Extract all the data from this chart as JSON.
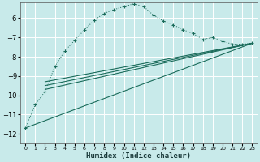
{
  "xlabel": "Humidex (Indice chaleur)",
  "bg_color": "#c8eaea",
  "grid_color": "#ffffff",
  "line_color": "#1a6b5a",
  "xlim": [
    -0.5,
    23.5
  ],
  "ylim": [
    -12.5,
    -5.2
  ],
  "yticks": [
    -12,
    -11,
    -10,
    -9,
    -8,
    -7,
    -6
  ],
  "xticks": [
    0,
    1,
    2,
    3,
    4,
    5,
    6,
    7,
    8,
    9,
    10,
    11,
    12,
    13,
    14,
    15,
    16,
    17,
    18,
    19,
    20,
    21,
    22,
    23
  ],
  "curve1_x": [
    0,
    1,
    2,
    3,
    4,
    5,
    6,
    7,
    8,
    9,
    10,
    11,
    12,
    13,
    14,
    15,
    16,
    17,
    18,
    19,
    20,
    21,
    22,
    23
  ],
  "curve1_y": [
    -11.7,
    -10.5,
    -9.8,
    -8.5,
    -7.7,
    -7.15,
    -6.6,
    -6.1,
    -5.75,
    -5.55,
    -5.4,
    -5.25,
    -5.4,
    -5.85,
    -6.15,
    -6.35,
    -6.6,
    -6.8,
    -7.1,
    -7.0,
    -7.2,
    -7.35,
    -7.35,
    -7.3
  ],
  "line1_x": [
    0,
    23
  ],
  "line1_y": [
    -11.7,
    -7.3
  ],
  "line2_x": [
    2,
    23
  ],
  "line2_y": [
    -9.7,
    -7.3
  ],
  "line3_x": [
    2,
    23
  ],
  "line3_y": [
    -9.5,
    -7.3
  ],
  "line4_x": [
    2,
    23
  ],
  "line4_y": [
    -9.3,
    -7.3
  ]
}
